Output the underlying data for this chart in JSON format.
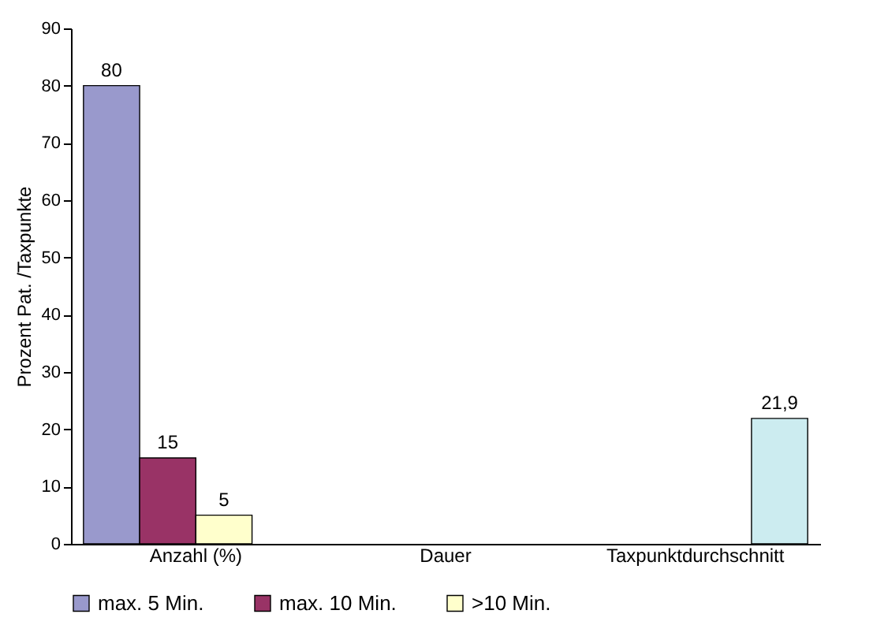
{
  "chart_data": {
    "type": "bar",
    "ylabel": "Prozent Pat. /Taxpunkte",
    "categories": [
      "Anzahl (%)",
      "Dauer",
      "Taxpunktdurchschnitt"
    ],
    "series": [
      {
        "name": "max. 5 Min.",
        "color": "#9999cc",
        "values": [
          80,
          null,
          null
        ],
        "value_labels": [
          "80",
          null,
          null
        ]
      },
      {
        "name": "max. 10 Min.",
        "color": "#993366",
        "values": [
          15,
          null,
          null
        ],
        "value_labels": [
          "15",
          null,
          null
        ]
      },
      {
        "name": ">10 Min.",
        "color": "#ffffcc",
        "values": [
          5,
          null,
          null
        ],
        "value_labels": [
          "5",
          null,
          null
        ]
      },
      {
        "color": "#ccecf0",
        "values": [
          null,
          null,
          21.9
        ],
        "value_labels": [
          null,
          null,
          "21,9"
        ]
      }
    ],
    "ylim": [
      0,
      90
    ],
    "yticks": [
      0,
      10,
      20,
      30,
      40,
      50,
      60,
      70,
      80,
      90
    ],
    "grid": false,
    "legend": "bottom left"
  }
}
